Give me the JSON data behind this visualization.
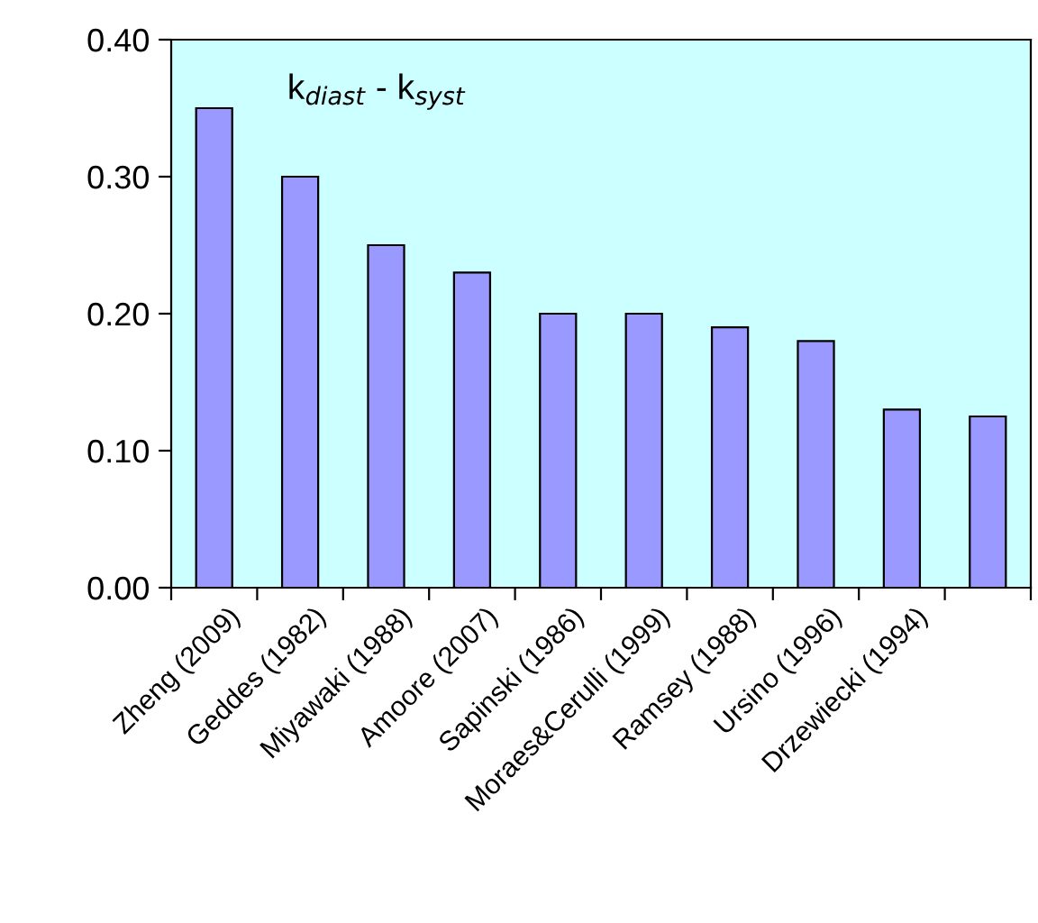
{
  "chart_data": {
    "type": "bar",
    "categories": [
      "Zheng (2009)",
      "Geddes (1982)",
      "Miyawaki (1988)",
      "Amoore (2007)",
      "Sapinski (1986)",
      "Moraes&Cerulli (1999)",
      "Ramsey (1988)",
      "Ursino (1996)",
      "Drzewiecki (1994)",
      null
    ],
    "values": [
      0.35,
      0.3,
      0.25,
      0.23,
      0.2,
      0.2,
      0.19,
      0.18,
      0.13,
      0.125
    ],
    "color": "#9999ff",
    "ylim": [
      0,
      0.4
    ],
    "yticks": [
      {
        "value": 0,
        "label": "0.00"
      },
      {
        "value": 0.1,
        "label": "0.10"
      },
      {
        "value": 0.2,
        "label": "0.20"
      },
      {
        "value": 0.3,
        "label": "0.30"
      },
      {
        "value": 0.4,
        "label": "0.40"
      }
    ],
    "annotations": [
      "k$_{diast}$ - k$_{syst}$"
    ],
    "grid": false
  }
}
